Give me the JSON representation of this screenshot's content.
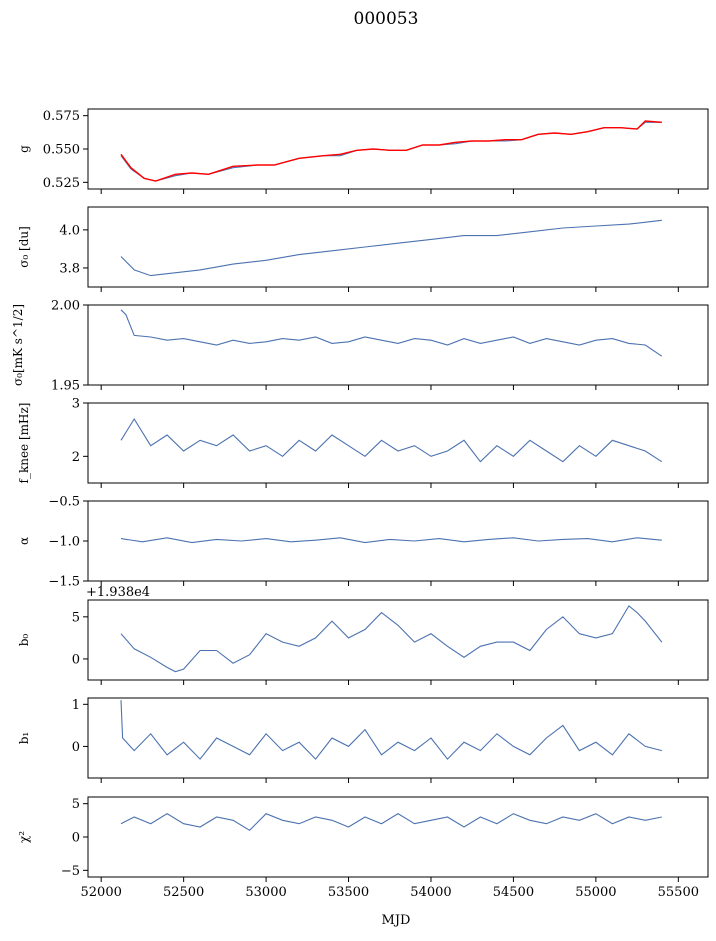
{
  "figure": {
    "title": "000053",
    "xlabel": "MJD",
    "x_ticks": [
      "52000",
      "52500",
      "53000",
      "53500",
      "54000",
      "54500",
      "55000",
      "55500"
    ]
  },
  "chart_data": [
    {
      "type": "line",
      "ylabel": "g",
      "xlim": [
        51920,
        55680
      ],
      "ylim": [
        0.52,
        0.58
      ],
      "y_ticks": [
        0.525,
        0.55,
        0.575
      ],
      "y_tick_labels": [
        "0.525",
        "0.550",
        "0.575"
      ],
      "x_tick_labels_shown": false,
      "series": [
        {
          "color": "#4c72b0",
          "x": [
            52120,
            52180,
            52260,
            52330,
            52450,
            52550,
            52650,
            52800,
            52950,
            53050,
            53200,
            53350,
            53450,
            53550,
            53650,
            53750,
            53850,
            53950,
            54050,
            54150,
            54250,
            54350,
            54450,
            54550,
            54650,
            54750,
            54850,
            54950,
            55050,
            55150,
            55250,
            55300,
            55400
          ],
          "y": [
            0.545,
            0.535,
            0.528,
            0.526,
            0.53,
            0.532,
            0.531,
            0.536,
            0.538,
            0.538,
            0.543,
            0.545,
            0.545,
            0.549,
            0.55,
            0.549,
            0.549,
            0.553,
            0.553,
            0.554,
            0.556,
            0.556,
            0.556,
            0.557,
            0.561,
            0.562,
            0.561,
            0.563,
            0.566,
            0.566,
            0.565,
            0.57,
            0.57
          ]
        },
        {
          "color": "#ff0000",
          "x": [
            52120,
            52180,
            52260,
            52330,
            52450,
            52550,
            52650,
            52800,
            52950,
            53050,
            53200,
            53350,
            53450,
            53550,
            53650,
            53750,
            53850,
            53950,
            54050,
            54150,
            54250,
            54350,
            54450,
            54550,
            54650,
            54750,
            54850,
            54950,
            55050,
            55150,
            55250,
            55300,
            55400
          ],
          "y": [
            0.546,
            0.536,
            0.528,
            0.526,
            0.531,
            0.532,
            0.531,
            0.537,
            0.538,
            0.538,
            0.543,
            0.545,
            0.546,
            0.549,
            0.55,
            0.549,
            0.549,
            0.553,
            0.553,
            0.555,
            0.556,
            0.556,
            0.557,
            0.557,
            0.561,
            0.562,
            0.561,
            0.563,
            0.566,
            0.566,
            0.565,
            0.571,
            0.57
          ]
        }
      ]
    },
    {
      "type": "line",
      "ylabel": "σ₀ [du]",
      "xlim": [
        51920,
        55680
      ],
      "ylim": [
        3.7,
        4.12
      ],
      "y_ticks": [
        3.8,
        4.0
      ],
      "y_tick_labels": [
        "3.8",
        "4.0"
      ],
      "x_tick_labels_shown": false,
      "series": [
        {
          "color": "#4c72b0",
          "x": [
            52120,
            52200,
            52300,
            52400,
            52600,
            52800,
            53000,
            53200,
            53400,
            53600,
            53800,
            54000,
            54200,
            54400,
            54600,
            54800,
            55000,
            55200,
            55400
          ],
          "y": [
            3.86,
            3.79,
            3.76,
            3.77,
            3.79,
            3.82,
            3.84,
            3.87,
            3.89,
            3.91,
            3.93,
            3.95,
            3.97,
            3.97,
            3.99,
            4.01,
            4.02,
            4.03,
            4.05
          ]
        }
      ]
    },
    {
      "type": "line",
      "ylabel": "σ₀[mK s^1/2]",
      "xlim": [
        51920,
        55680
      ],
      "ylim": [
        1.95,
        2.0
      ],
      "y_ticks": [
        1.95,
        2.0
      ],
      "y_tick_labels": [
        "1.95",
        "2.00"
      ],
      "x_tick_labels_shown": false,
      "series": [
        {
          "color": "#4c72b0",
          "x": [
            52120,
            52150,
            52200,
            52300,
            52400,
            52500,
            52600,
            52700,
            52800,
            52900,
            53000,
            53100,
            53200,
            53300,
            53400,
            53500,
            53600,
            53700,
            53800,
            53900,
            54000,
            54100,
            54200,
            54300,
            54400,
            54500,
            54600,
            54700,
            54800,
            54900,
            55000,
            55100,
            55200,
            55300,
            55400
          ],
          "y": [
            1.997,
            1.994,
            1.981,
            1.98,
            1.978,
            1.979,
            1.977,
            1.975,
            1.978,
            1.976,
            1.977,
            1.979,
            1.978,
            1.98,
            1.976,
            1.977,
            1.98,
            1.978,
            1.976,
            1.979,
            1.978,
            1.975,
            1.979,
            1.976,
            1.978,
            1.98,
            1.976,
            1.979,
            1.977,
            1.975,
            1.978,
            1.979,
            1.976,
            1.975,
            1.968
          ]
        }
      ]
    },
    {
      "type": "line",
      "ylabel": "f_knee [mHz]",
      "xlim": [
        51920,
        55680
      ],
      "ylim": [
        1.5,
        3.0
      ],
      "y_ticks": [
        2,
        3
      ],
      "y_tick_labels": [
        "2",
        "3"
      ],
      "x_tick_labels_shown": false,
      "series": [
        {
          "color": "#4c72b0",
          "x": [
            52120,
            52200,
            52300,
            52400,
            52500,
            52600,
            52700,
            52800,
            52900,
            53000,
            53100,
            53200,
            53300,
            53400,
            53500,
            53600,
            53700,
            53800,
            53900,
            54000,
            54100,
            54200,
            54300,
            54400,
            54500,
            54600,
            54700,
            54800,
            54900,
            55000,
            55100,
            55200,
            55300,
            55400
          ],
          "y": [
            2.3,
            2.7,
            2.2,
            2.4,
            2.1,
            2.3,
            2.2,
            2.4,
            2.1,
            2.2,
            2.0,
            2.3,
            2.1,
            2.4,
            2.2,
            2.0,
            2.3,
            2.1,
            2.2,
            2.0,
            2.1,
            2.3,
            1.9,
            2.2,
            2.0,
            2.3,
            2.1,
            1.9,
            2.2,
            2.0,
            2.3,
            2.2,
            2.1,
            1.9
          ]
        }
      ]
    },
    {
      "type": "line",
      "ylabel": "α",
      "xlim": [
        51920,
        55680
      ],
      "ylim": [
        -1.5,
        -0.5
      ],
      "y_ticks": [
        -1.5,
        -1.0,
        -0.5
      ],
      "y_tick_labels": [
        "−1.5",
        "−1.0",
        "−0.5"
      ],
      "x_tick_labels_shown": false,
      "series": [
        {
          "color": "#4c72b0",
          "x": [
            52120,
            52250,
            52400,
            52550,
            52700,
            52850,
            53000,
            53150,
            53300,
            53450,
            53600,
            53750,
            53900,
            54050,
            54200,
            54350,
            54500,
            54650,
            54800,
            54950,
            55100,
            55250,
            55400
          ],
          "y": [
            -0.97,
            -1.01,
            -0.96,
            -1.02,
            -0.98,
            -1.0,
            -0.97,
            -1.01,
            -0.99,
            -0.96,
            -1.02,
            -0.98,
            -1.0,
            -0.97,
            -1.01,
            -0.98,
            -0.96,
            -1.0,
            -0.98,
            -0.97,
            -1.01,
            -0.96,
            -0.99
          ]
        }
      ]
    },
    {
      "type": "line",
      "ylabel": "b₀",
      "offset_text": "+1.938e4",
      "xlim": [
        51920,
        55680
      ],
      "ylim": [
        -2.5,
        7.0
      ],
      "y_ticks": [
        0,
        5
      ],
      "y_tick_labels": [
        "0",
        "5"
      ],
      "x_tick_labels_shown": false,
      "series": [
        {
          "color": "#4c72b0",
          "x": [
            52120,
            52200,
            52300,
            52400,
            52450,
            52500,
            52600,
            52700,
            52800,
            52900,
            53000,
            53100,
            53200,
            53300,
            53400,
            53500,
            53600,
            53700,
            53800,
            53900,
            54000,
            54100,
            54200,
            54300,
            54400,
            54500,
            54600,
            54700,
            54800,
            54900,
            55000,
            55100,
            55200,
            55250,
            55300,
            55400
          ],
          "y": [
            3.0,
            1.2,
            0.2,
            -1.0,
            -1.5,
            -1.2,
            1.0,
            1.0,
            -0.5,
            0.5,
            3.0,
            2.0,
            1.5,
            2.5,
            4.5,
            2.5,
            3.5,
            5.5,
            4.0,
            2.0,
            3.0,
            1.5,
            0.2,
            1.5,
            2.0,
            2.0,
            1.0,
            3.5,
            5.0,
            3.0,
            2.5,
            3.0,
            6.3,
            5.5,
            4.5,
            2.0
          ]
        }
      ]
    },
    {
      "type": "line",
      "ylabel": "b₁",
      "xlim": [
        51920,
        55680
      ],
      "ylim": [
        -0.75,
        1.15
      ],
      "y_ticks": [
        0,
        1
      ],
      "y_tick_labels": [
        "0",
        "1"
      ],
      "x_tick_labels_shown": false,
      "series": [
        {
          "color": "#4c72b0",
          "x": [
            52120,
            52130,
            52200,
            52300,
            52400,
            52500,
            52600,
            52700,
            52800,
            52900,
            53000,
            53100,
            53200,
            53300,
            53400,
            53500,
            53600,
            53700,
            53800,
            53900,
            54000,
            54100,
            54200,
            54300,
            54400,
            54500,
            54600,
            54700,
            54800,
            54900,
            55000,
            55100,
            55200,
            55300,
            55400
          ],
          "y": [
            1.1,
            0.2,
            -0.1,
            0.3,
            -0.2,
            0.1,
            -0.3,
            0.2,
            0.0,
            -0.2,
            0.3,
            -0.1,
            0.1,
            -0.3,
            0.2,
            0.0,
            0.4,
            -0.2,
            0.1,
            -0.1,
            0.2,
            -0.3,
            0.1,
            -0.1,
            0.3,
            0.0,
            -0.2,
            0.2,
            0.5,
            -0.1,
            0.1,
            -0.2,
            0.3,
            0.0,
            -0.1
          ]
        }
      ]
    },
    {
      "type": "line",
      "ylabel": "χ²",
      "xlim": [
        51920,
        55680
      ],
      "ylim": [
        -6.0,
        6.0
      ],
      "y_ticks": [
        -5,
        0,
        5
      ],
      "y_tick_labels": [
        "−5",
        "0",
        "5"
      ],
      "x_tick_labels_shown": true,
      "series": [
        {
          "color": "#4c72b0",
          "x": [
            52120,
            52200,
            52300,
            52400,
            52500,
            52600,
            52700,
            52800,
            52900,
            53000,
            53100,
            53200,
            53300,
            53400,
            53500,
            53600,
            53700,
            53800,
            53900,
            54000,
            54100,
            54200,
            54300,
            54400,
            54500,
            54600,
            54700,
            54800,
            54900,
            55000,
            55100,
            55200,
            55300,
            55400
          ],
          "y": [
            2.0,
            3.0,
            2.0,
            3.5,
            2.0,
            1.5,
            3.0,
            2.5,
            1.0,
            3.5,
            2.5,
            2.0,
            3.0,
            2.5,
            1.5,
            3.0,
            2.0,
            3.5,
            2.0,
            2.5,
            3.0,
            1.5,
            3.0,
            2.0,
            3.5,
            2.5,
            2.0,
            3.0,
            2.5,
            3.5,
            2.0,
            3.0,
            2.5,
            3.0
          ]
        }
      ]
    }
  ]
}
